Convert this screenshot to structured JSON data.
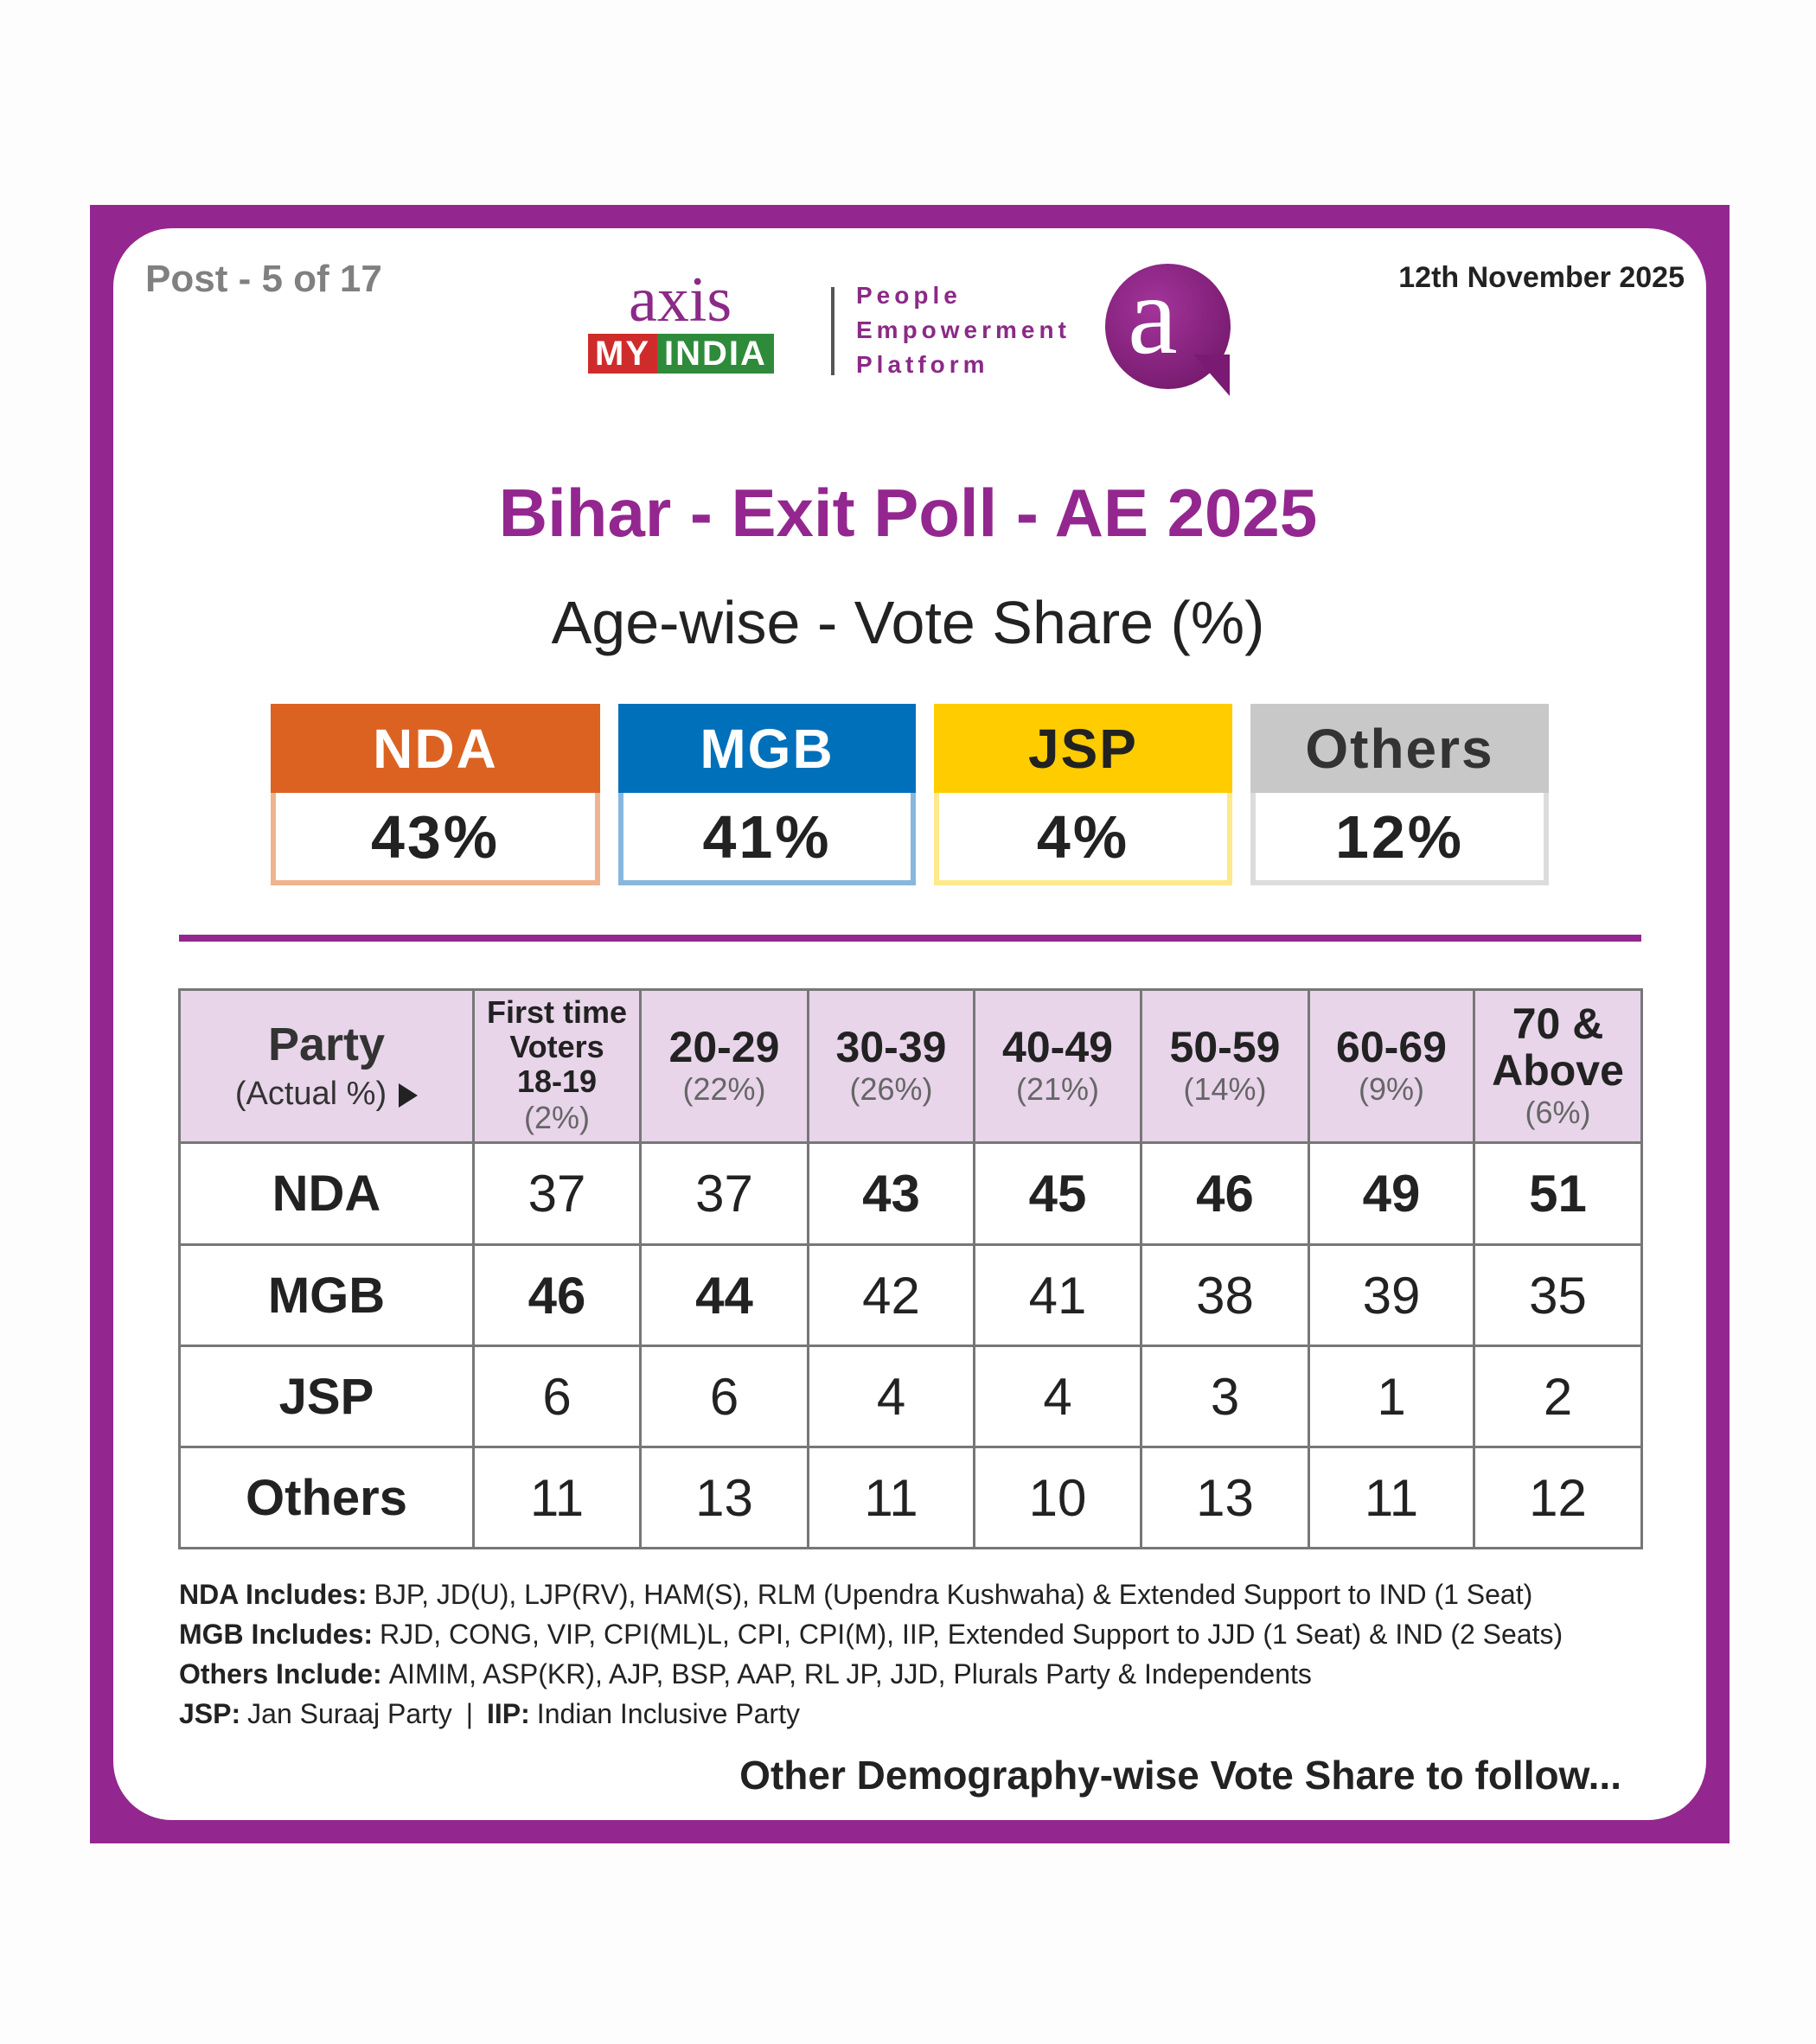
{
  "header": {
    "post": "Post - 5 of 17",
    "date": "12th November 2025"
  },
  "logo": {
    "brand": "axis",
    "brand_band": [
      "MY",
      "INDIA"
    ],
    "tagline": [
      "People",
      "Empowerment",
      "Platform"
    ],
    "badge": "a"
  },
  "title": "Bihar - Exit Poll - AE 2025",
  "subtitle": "Age-wise - Vote Share (%)",
  "summary": [
    {
      "party": "NDA",
      "value": "43%"
    },
    {
      "party": "MGB",
      "value": "41%"
    },
    {
      "party": "JSP",
      "value": "4%"
    },
    {
      "party": "Others",
      "value": "12%"
    }
  ],
  "table": {
    "corner": {
      "label": "Party",
      "sub": "(Actual %)"
    },
    "columns": [
      {
        "lines": [
          "First time",
          "Voters",
          "18-19"
        ],
        "share": "(2%)"
      },
      {
        "lines": [
          "20-29"
        ],
        "share": "(22%)"
      },
      {
        "lines": [
          "30-39"
        ],
        "share": "(26%)"
      },
      {
        "lines": [
          "40-49"
        ],
        "share": "(21%)"
      },
      {
        "lines": [
          "50-59"
        ],
        "share": "(14%)"
      },
      {
        "lines": [
          "60-69"
        ],
        "share": "(9%)"
      },
      {
        "lines": [
          "70 &",
          "Above"
        ],
        "share": "(6%)"
      }
    ],
    "rows": [
      {
        "party": "NDA",
        "values": [
          37,
          37,
          43,
          45,
          46,
          49,
          51
        ],
        "bold": [
          2,
          3,
          4,
          5,
          6
        ]
      },
      {
        "party": "MGB",
        "values": [
          46,
          44,
          42,
          41,
          38,
          39,
          35
        ],
        "bold": [
          0,
          1
        ]
      },
      {
        "party": "JSP",
        "values": [
          6,
          6,
          4,
          4,
          3,
          1,
          2
        ],
        "bold": []
      },
      {
        "party": "Others",
        "values": [
          11,
          13,
          11,
          10,
          13,
          11,
          12
        ],
        "bold": []
      }
    ]
  },
  "notes": [
    [
      {
        "label": "NDA Includes:",
        "text": "BJP, JD(U), LJP(RV), HAM(S), RLM (Upendra Kushwaha) & Extended Support to IND (1 Seat)"
      }
    ],
    [
      {
        "label": "MGB Includes:",
        "text": "RJD, CONG, VIP, CPI(ML)L, CPI, CPI(M), IIP, Extended Support to JJD (1 Seat) & IND (2 Seats)"
      }
    ],
    [
      {
        "label": "Others Include:",
        "text": "AIMIM, ASP(KR), AJP, BSP, AAP, RL JP, JJD, Plurals Party & Independents"
      }
    ],
    [
      {
        "label": "JSP:",
        "text": "Jan Suraaj Party"
      },
      {
        "label": "IIP:",
        "text": "Indian Inclusive Party"
      }
    ]
  ],
  "note_separator": "|",
  "footer": "Other Demography-wise Vote Share to follow..."
}
